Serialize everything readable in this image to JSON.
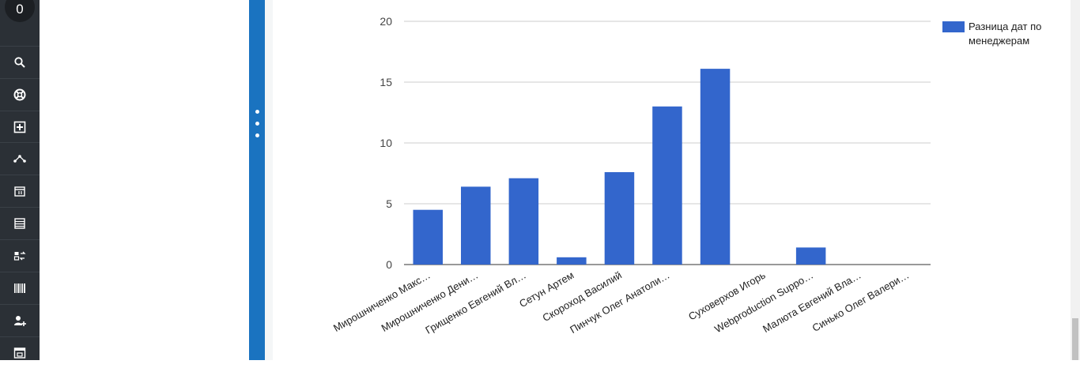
{
  "sidebar": {
    "badge": "0",
    "icons": [
      "search-icon",
      "lifebuoy-icon",
      "add-box-icon",
      "network-icon",
      "calendar-icon",
      "list-icon",
      "exchange-icon",
      "barcode-icon",
      "add-user-icon",
      "window-icon"
    ]
  },
  "colors": {
    "bar": "#3366cc",
    "splitter": "#1a73c0",
    "rail": "#2b3036"
  },
  "chart_data": {
    "type": "bar",
    "categories": [
      "Мирошниченко Макс…",
      "Мирошниченко Дени…",
      "Грищенко Евгений Вл…",
      "Сетун Артем",
      "Скороход Василий",
      "Пинчук Олег Анатоли…",
      "",
      "Суховерхов Игорь",
      "Webproduction Suppo…",
      "Малюта Евгений Вла…",
      "Синько Олег Валери…"
    ],
    "series": [
      {
        "name": "Разница дат по менеджерам",
        "values": [
          4.5,
          6.4,
          7.1,
          0.6,
          7.6,
          13.0,
          16.1,
          0,
          1.4,
          0,
          0
        ]
      }
    ],
    "ylim": [
      0,
      20
    ],
    "yticks": [
      "0",
      "5",
      "10",
      "15",
      "20"
    ],
    "grid": true,
    "legend_position": "right"
  }
}
